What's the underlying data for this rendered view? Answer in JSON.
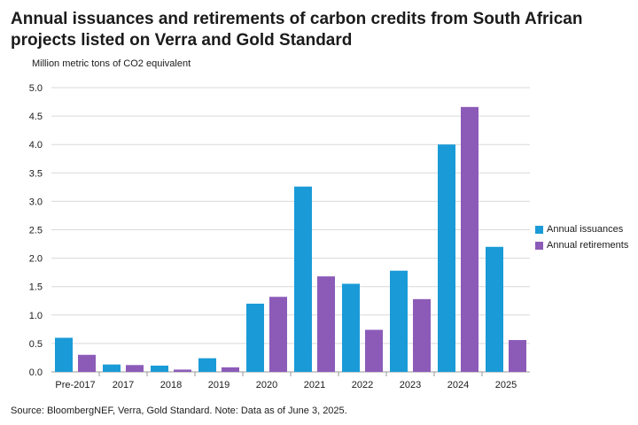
{
  "title": "Annual issuances and retirements of carbon credits from South African projects listed on Verra and Gold Standard",
  "source": "Source: BloombergNEF, Verra, Gold Standard. Note: Data as of June 3, 2025.",
  "colors": {
    "issuances": "#1a9bd7",
    "retirements": "#8c5bb8",
    "grid": "#d9d9d9",
    "axis": "#999999"
  },
  "chart_data": {
    "type": "bar",
    "ylabel": "Million metric tons of CO2 equivalent",
    "xlabel": "",
    "ylim": [
      0,
      5.0
    ],
    "yticks": [
      "0.0",
      "0.5",
      "1.0",
      "1.5",
      "2.0",
      "2.5",
      "3.0",
      "3.5",
      "4.0",
      "4.5",
      "5.0"
    ],
    "grid": true,
    "legend_position": "right",
    "categories": [
      "Pre-2017",
      "2017",
      "2018",
      "2019",
      "2020",
      "2021",
      "2022",
      "2023",
      "2024",
      "2025"
    ],
    "series": [
      {
        "name": "Annual issuances",
        "values": [
          0.6,
          0.13,
          0.11,
          0.24,
          1.2,
          3.26,
          1.55,
          1.78,
          4.0,
          2.2
        ]
      },
      {
        "name": "Annual retirements",
        "values": [
          0.3,
          0.12,
          0.04,
          0.08,
          1.32,
          1.68,
          0.74,
          1.28,
          4.66,
          0.56
        ]
      }
    ]
  }
}
